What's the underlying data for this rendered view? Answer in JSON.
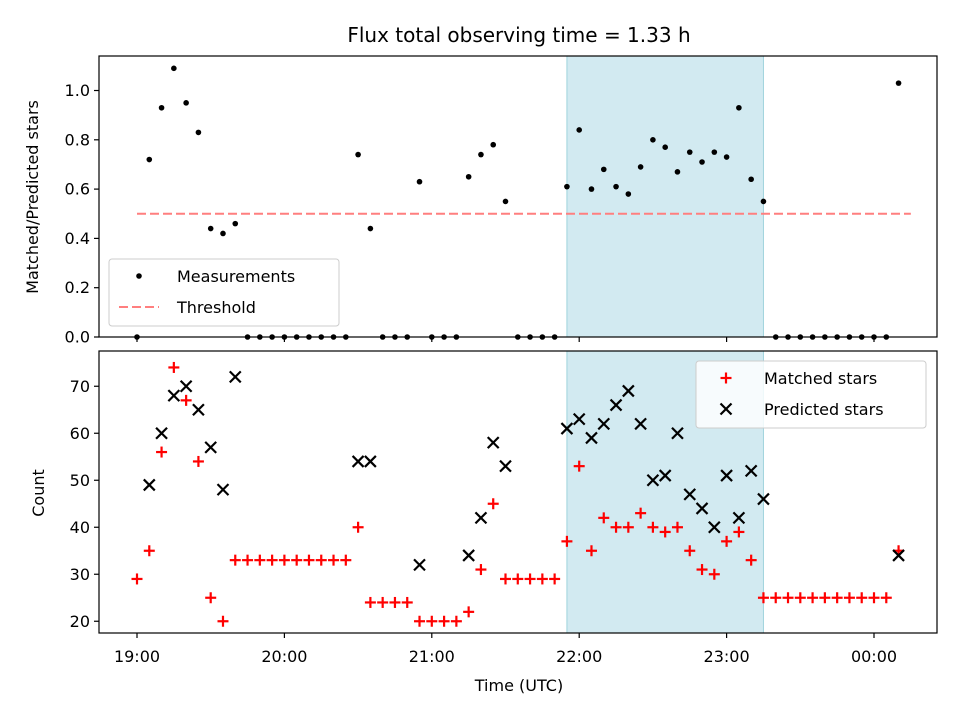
{
  "chart_data": {
    "title": "Flux total observing time = 1.33 h",
    "xlabel": "Time (UTC)",
    "x_ticks": [
      "19:00",
      "20:00",
      "21:00",
      "22:00",
      "23:00",
      "00:00"
    ],
    "highlight": {
      "x_start": "21:55",
      "x_end": "23:15",
      "color": "#add8e6"
    },
    "panels": [
      {
        "name": "ratio",
        "type": "scatter",
        "ylabel": "Matched/Predicted stars",
        "ylim": [
          0,
          1.14
        ],
        "y_ticks": [
          "0.0",
          "0.2",
          "0.4",
          "0.6",
          "0.8",
          "1.0"
        ],
        "legend": {
          "position": "lower-left",
          "entries": [
            "Measurements",
            "Threshold"
          ]
        },
        "threshold": {
          "name": "Threshold",
          "value": 0.5,
          "x_start": "19:00",
          "x_end": "00:15",
          "color": "#ff7f7f"
        },
        "series": [
          {
            "name": "Measurements",
            "color": "#000000",
            "marker": "dot",
            "x": [
              "19:00",
              "19:05",
              "19:10",
              "19:15",
              "19:20",
              "19:25",
              "19:30",
              "19:35",
              "19:40",
              "19:45",
              "19:50",
              "19:55",
              "20:00",
              "20:05",
              "20:10",
              "20:15",
              "20:20",
              "20:25",
              "20:30",
              "20:35",
              "20:40",
              "20:45",
              "20:50",
              "20:55",
              "21:00",
              "21:05",
              "21:10",
              "21:15",
              "21:20",
              "21:25",
              "21:30",
              "21:35",
              "21:40",
              "21:45",
              "21:50",
              "21:55",
              "22:00",
              "22:05",
              "22:10",
              "22:15",
              "22:20",
              "22:25",
              "22:30",
              "22:35",
              "22:40",
              "22:45",
              "22:50",
              "22:55",
              "23:00",
              "23:05",
              "23:10",
              "23:15",
              "23:20",
              "23:25",
              "23:30",
              "23:35",
              "23:40",
              "23:45",
              "23:50",
              "23:55",
              "00:00",
              "00:05",
              "00:10"
            ],
            "y": [
              0.0,
              0.72,
              0.93,
              1.09,
              0.95,
              0.83,
              0.44,
              0.42,
              0.46,
              0.0,
              0.0,
              0.0,
              0.0,
              0.0,
              0.0,
              0.0,
              0.0,
              0.0,
              0.74,
              0.44,
              0.0,
              0.0,
              0.0,
              0.63,
              0.0,
              0.0,
              0.0,
              0.65,
              0.74,
              0.78,
              0.55,
              0.0,
              0.0,
              0.0,
              0.0,
              0.61,
              0.84,
              0.6,
              0.68,
              0.61,
              0.58,
              0.69,
              0.8,
              0.77,
              0.67,
              0.75,
              0.71,
              0.75,
              0.73,
              0.93,
              0.64,
              0.55,
              0.0,
              0.0,
              0.0,
              0.0,
              0.0,
              0.0,
              0.0,
              0.0,
              0.0,
              0.0,
              1.03
            ]
          }
        ]
      },
      {
        "name": "counts",
        "type": "scatter",
        "ylabel": "Count",
        "ylim": [
          17.5,
          77.5
        ],
        "y_ticks": [
          "20",
          "30",
          "40",
          "50",
          "60",
          "70"
        ],
        "legend": {
          "position": "top-right",
          "entries": [
            "Matched stars",
            "Predicted stars"
          ]
        },
        "series": [
          {
            "name": "Matched stars",
            "color": "#ff0000",
            "marker": "plus",
            "x": [
              "19:00",
              "19:05",
              "19:10",
              "19:15",
              "19:20",
              "19:25",
              "19:30",
              "19:35",
              "19:40",
              "19:45",
              "19:50",
              "19:55",
              "20:00",
              "20:05",
              "20:10",
              "20:15",
              "20:20",
              "20:25",
              "20:30",
              "20:35",
              "20:40",
              "20:45",
              "20:50",
              "20:55",
              "21:00",
              "21:05",
              "21:10",
              "21:15",
              "21:20",
              "21:25",
              "21:30",
              "21:35",
              "21:40",
              "21:45",
              "21:50",
              "21:55",
              "22:00",
              "22:05",
              "22:10",
              "22:15",
              "22:20",
              "22:25",
              "22:30",
              "22:35",
              "22:40",
              "22:45",
              "22:50",
              "22:55",
              "23:00",
              "23:05",
              "23:10",
              "23:15",
              "23:20",
              "23:25",
              "23:30",
              "23:35",
              "23:40",
              "23:45",
              "23:50",
              "23:55",
              "00:00",
              "00:05",
              "00:10"
            ],
            "y": [
              29,
              35,
              56,
              74,
              67,
              54,
              25,
              20,
              33,
              33,
              33,
              33,
              33,
              33,
              33,
              33,
              33,
              33,
              40,
              24,
              24,
              24,
              24,
              20,
              20,
              20,
              20,
              22,
              31,
              45,
              29,
              29,
              29,
              29,
              29,
              37,
              53,
              35,
              42,
              40,
              40,
              43,
              40,
              39,
              40,
              35,
              31,
              30,
              37,
              39,
              33,
              25,
              25,
              25,
              25,
              25,
              25,
              25,
              25,
              25,
              25,
              25,
              35
            ]
          },
          {
            "name": "Predicted stars",
            "color": "#000000",
            "marker": "x",
            "x": [
              "19:05",
              "19:10",
              "19:15",
              "19:20",
              "19:25",
              "19:30",
              "19:35",
              "19:40",
              "20:30",
              "20:35",
              "20:55",
              "21:15",
              "21:20",
              "21:25",
              "21:30",
              "21:55",
              "22:00",
              "22:05",
              "22:10",
              "22:15",
              "22:20",
              "22:25",
              "22:30",
              "22:35",
              "22:40",
              "22:45",
              "22:50",
              "22:55",
              "23:00",
              "23:05",
              "23:10",
              "23:15",
              "00:10"
            ],
            "y": [
              49,
              60,
              68,
              70,
              65,
              57,
              48,
              72,
              54,
              54,
              32,
              34,
              42,
              58,
              53,
              61,
              63,
              59,
              62,
              66,
              69,
              62,
              50,
              51,
              60,
              47,
              44,
              40,
              51,
              42,
              52,
              46,
              34
            ]
          }
        ]
      }
    ]
  }
}
